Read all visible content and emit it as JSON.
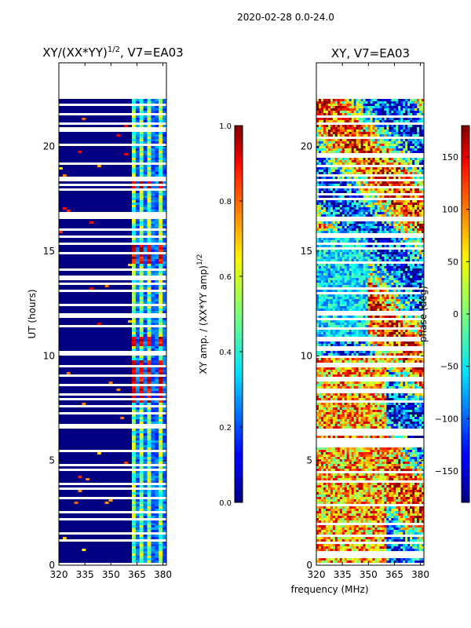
{
  "suptitle": "2020-02-28 0.0-24.0",
  "chart_data": [
    {
      "type": "heatmap",
      "title_main": "XY/(XX*YY)",
      "title_sup": "1/2",
      "title_tail": ", V7=EA03",
      "xlabel": "",
      "ylabel": "UT (hours)",
      "xlim": [
        320,
        382
      ],
      "ylim": [
        0,
        24
      ],
      "x_ticks": [
        320,
        335,
        350,
        365,
        380
      ],
      "y_ticks": [
        0,
        5,
        10,
        15,
        20
      ],
      "data_extent_hours": [
        0,
        22.3
      ],
      "colormap": "jet",
      "colorbar": {
        "label_main": "XY amp. / (XX*YY amp)",
        "label_sup": "1/2",
        "range": [
          0.0,
          1.0
        ],
        "ticks": [
          "0.0",
          "0.2",
          "0.4",
          "0.6",
          "0.8",
          "1.0"
        ]
      }
    },
    {
      "type": "heatmap",
      "title_main": "XY, V7=EA03",
      "xlabel": "frequency (MHz)",
      "ylabel": "",
      "xlim": [
        320,
        382
      ],
      "ylim": [
        0,
        24
      ],
      "x_ticks": [
        320,
        335,
        350,
        365,
        380
      ],
      "y_ticks": [
        0,
        5,
        10,
        15,
        20
      ],
      "data_extent_hours": [
        0,
        22.3
      ],
      "colormap": "jet",
      "colorbar": {
        "label": "phase (deg)",
        "range": [
          -180,
          180
        ],
        "ticks": [
          -150,
          -100,
          -50,
          0,
          50,
          100,
          150
        ]
      }
    }
  ]
}
